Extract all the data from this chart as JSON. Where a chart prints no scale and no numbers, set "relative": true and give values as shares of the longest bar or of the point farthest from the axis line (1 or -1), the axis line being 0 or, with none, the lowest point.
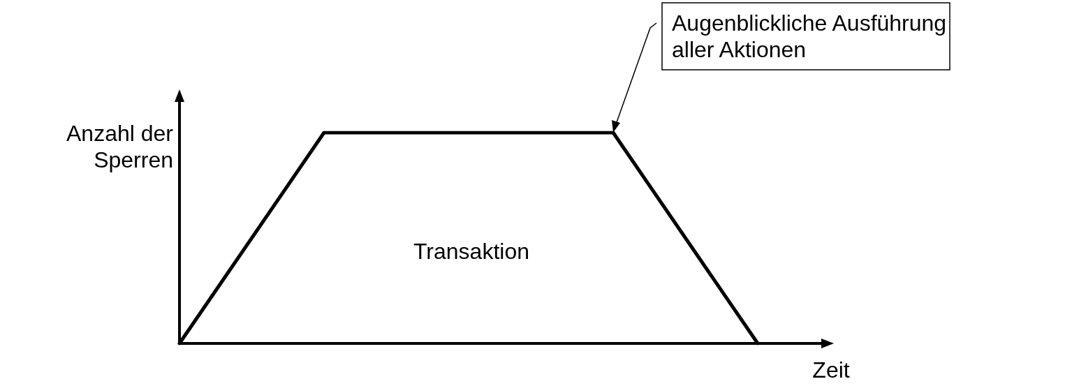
{
  "chart_data": {
    "type": "line",
    "categories": [
      null,
      null,
      null,
      null,
      null
    ],
    "values": [
      0,
      1,
      1,
      1,
      0
    ],
    "relative": true,
    "color": "#000000",
    "marker": "none",
    "line_style": "solid",
    "xlabel": "Zeit",
    "ylabel": "Anzahl der\nSperren",
    "annotations": [
      "Transaktion",
      "Augenblickliche Ausführung\naller Aktionen"
    ]
  }
}
